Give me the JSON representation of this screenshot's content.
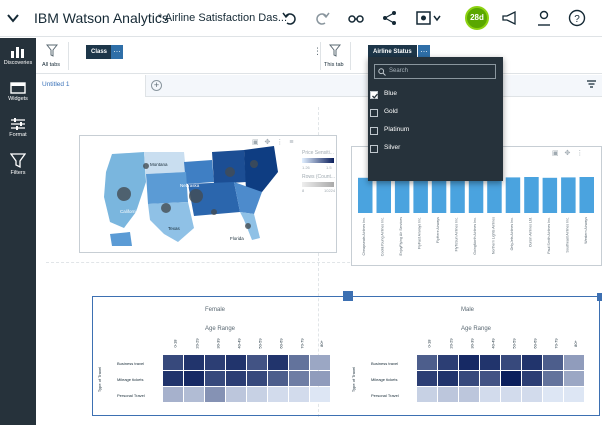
{
  "header": {
    "app_title": "IBM Watson Analytics",
    "doc_title": "* Airline Satisfaction Das...",
    "avatar_initials": "28d",
    "accent": "#5aa700"
  },
  "rail": {
    "items": [
      {
        "label": "Discoveries",
        "icon": "bar-chart-icon"
      },
      {
        "label": "Widgets",
        "icon": "widgets-icon"
      },
      {
        "label": "Format",
        "icon": "sliders-icon"
      },
      {
        "label": "Filters",
        "icon": "filter-icon"
      }
    ]
  },
  "filters": {
    "all_tabs_label": "All tabs",
    "class_chip": "Class",
    "this_tab_label": "This tab",
    "airline_chip": "Airline Status",
    "more": "…"
  },
  "tabs": {
    "active": "Untitled 1",
    "add": "+"
  },
  "dropdown": {
    "search_placeholder": "Search",
    "options": [
      {
        "label": "Blue",
        "checked": true
      },
      {
        "label": "Gold",
        "checked": false
      },
      {
        "label": "Platinum",
        "checked": false
      },
      {
        "label": "Silver",
        "checked": false
      }
    ]
  },
  "map_tile": {
    "legend_title": "Price Sensiti...",
    "legend_low": "1.26",
    "legend_high": "1.5",
    "legend2_title": "Rows (Count...",
    "legend2_low": "8",
    "legend2_high": "10224",
    "states": [
      "Montana",
      "Nebraska",
      "California",
      "Texas",
      "Florida"
    ]
  },
  "bar_tile": {
    "airlines": [
      "Cheapseats Airlines Inc.",
      "Cool&Young Airlines Inc.",
      "EnjoyFlying Air Services",
      "FlyFast Airways Inc.",
      "FlyHere Airways",
      "FlyToSun Airlines Inc.",
      "GoingNorth Airlines Inc.",
      "Northern Lights Airlines",
      "OnlyJets Airlines Inc.",
      "Oursin Airlines Ltd.",
      "Paul Smith Airlines Inc.",
      "Southeast Airlines Inc.",
      "Western Airways"
    ],
    "values": [
      88,
      90,
      89,
      91,
      90,
      92,
      90,
      91,
      89,
      90,
      88,
      89,
      90
    ],
    "bar_color": "#4aa3df"
  },
  "heatmap_tile": {
    "female_title": "Female",
    "male_title": "Male",
    "age_range_label": "Age Range",
    "y_label": "Type of Travel",
    "age_ranges": [
      "0-18",
      "20-29",
      "30-39",
      "40-49",
      "50-59",
      "60-69",
      "70-79",
      "80+"
    ],
    "rows": [
      "Business travel",
      "Mileage tickets",
      "Personal Travel"
    ],
    "female_levels": [
      [
        0.8,
        0.9,
        0.85,
        0.9,
        0.75,
        0.9,
        0.6,
        0.35
      ],
      [
        0.9,
        0.95,
        0.8,
        0.85,
        0.8,
        0.7,
        0.55,
        0.4
      ],
      [
        0.3,
        0.25,
        0.45,
        0.2,
        0.15,
        0.1,
        0.1,
        0.05
      ]
    ],
    "male_levels": [
      [
        0.7,
        0.85,
        0.95,
        0.9,
        0.8,
        0.9,
        0.7,
        0.4
      ],
      [
        0.85,
        0.9,
        0.8,
        0.75,
        1.0,
        0.85,
        0.6,
        0.35
      ],
      [
        0.15,
        0.2,
        0.2,
        0.1,
        0.1,
        0.1,
        0.05,
        0.05
      ]
    ],
    "dark_color": "#0b1f5c"
  }
}
